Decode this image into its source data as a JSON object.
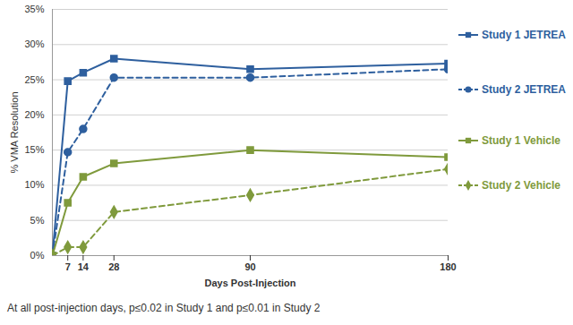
{
  "chart_data": {
    "type": "line",
    "x_label": "Days Post-Injection",
    "y_label": "% VMA Resolution",
    "annotation": "At all post-injection days, p≤0.02 in Study 1 and p≤0.01 in Study 2",
    "x": [
      0,
      7,
      14,
      28,
      90,
      180
    ],
    "xlim": [
      0,
      180
    ],
    "xticks": [
      7,
      14,
      28,
      90,
      180
    ],
    "ylim": [
      0,
      35
    ],
    "yticks": [
      {
        "value": 0,
        "label": "0%"
      },
      {
        "value": 5,
        "label": "5%"
      },
      {
        "value": 10,
        "label": "10%"
      },
      {
        "value": 15,
        "label": "15%"
      },
      {
        "value": 20,
        "label": "20%"
      },
      {
        "value": 25,
        "label": "25%"
      },
      {
        "value": 30,
        "label": "30%"
      },
      {
        "value": 35,
        "label": "35%"
      }
    ],
    "grid": true,
    "legend": "right",
    "series": [
      {
        "name": "Study 1 JETREA",
        "color": "#2e5f9e",
        "marker": "square",
        "line_style": "solid",
        "values": [
          0,
          24.8,
          26,
          28,
          26.5,
          27.3
        ]
      },
      {
        "name": "Study 2 JETREA",
        "color": "#2e5f9e",
        "marker": "circle",
        "line_style": "dashed",
        "values": [
          0,
          14.7,
          18,
          25.3,
          25.3,
          26.5
        ]
      },
      {
        "name": "Study 1 Vehicle",
        "color": "#7f9a3c",
        "marker": "square",
        "line_style": "solid",
        "values": [
          0,
          7.5,
          11.2,
          13.1,
          15,
          14
        ]
      },
      {
        "name": "Study 2 Vehicle",
        "color": "#7f9a3c",
        "marker": "diamond",
        "line_style": "dashed",
        "values": [
          0,
          1.2,
          1.2,
          6.2,
          8.6,
          12.3
        ]
      }
    ]
  }
}
